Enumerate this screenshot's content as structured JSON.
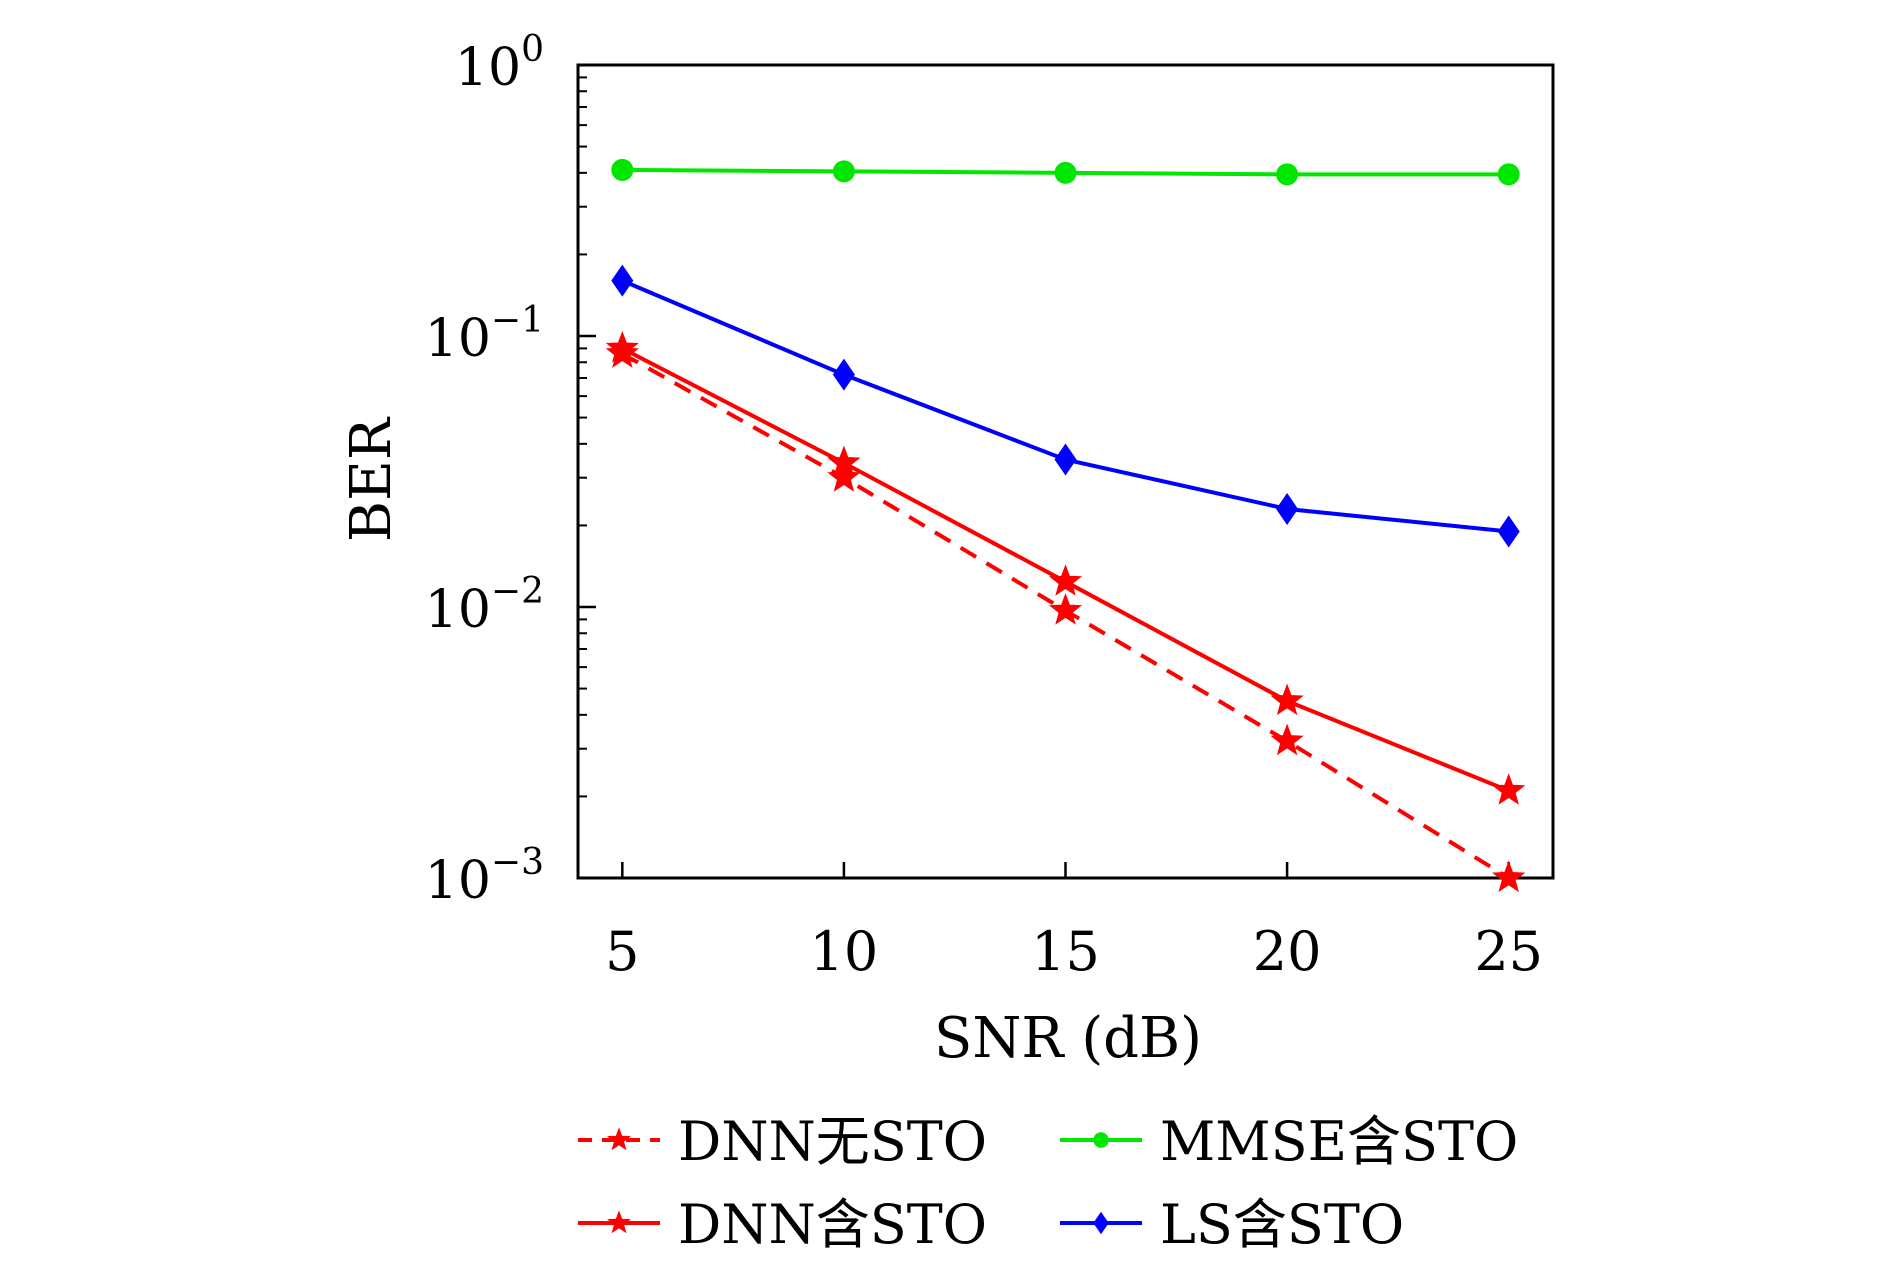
{
  "chart_data": {
    "type": "line",
    "xlabel": "SNR (dB)",
    "ylabel": "BER",
    "x": [
      5,
      10,
      15,
      20,
      25
    ],
    "xlim": [
      4,
      26
    ],
    "ylim": [
      0.001,
      1
    ],
    "yscale": "log",
    "xticks": [
      "5",
      "10",
      "15",
      "20",
      "25"
    ],
    "yticks": [
      {
        "base": "10",
        "exp": "0"
      },
      {
        "base": "10",
        "exp": "−1"
      },
      {
        "base": "10",
        "exp": "−2"
      },
      {
        "base": "10",
        "exp": "−3"
      }
    ],
    "grid": false,
    "legend_position": "bottom",
    "series": [
      {
        "name": "DNN无STO",
        "values": [
          0.086,
          0.03,
          0.0097,
          0.0032,
          0.001
        ],
        "color": "#ff0000",
        "dash": "dashed",
        "marker": "star"
      },
      {
        "name": "MMSE含STO",
        "values": [
          0.41,
          0.405,
          0.4,
          0.395,
          0.395
        ],
        "color": "#00e600",
        "dash": "solid",
        "marker": "circle"
      },
      {
        "name": "DNN含STO",
        "values": [
          0.09,
          0.034,
          0.0124,
          0.0045,
          0.0021
        ],
        "color": "#ff0000",
        "dash": "solid",
        "marker": "star"
      },
      {
        "name": "LS含STO",
        "values": [
          0.16,
          0.072,
          0.035,
          0.023,
          0.019
        ],
        "color": "#0000ff",
        "dash": "solid",
        "marker": "diamond"
      }
    ]
  }
}
